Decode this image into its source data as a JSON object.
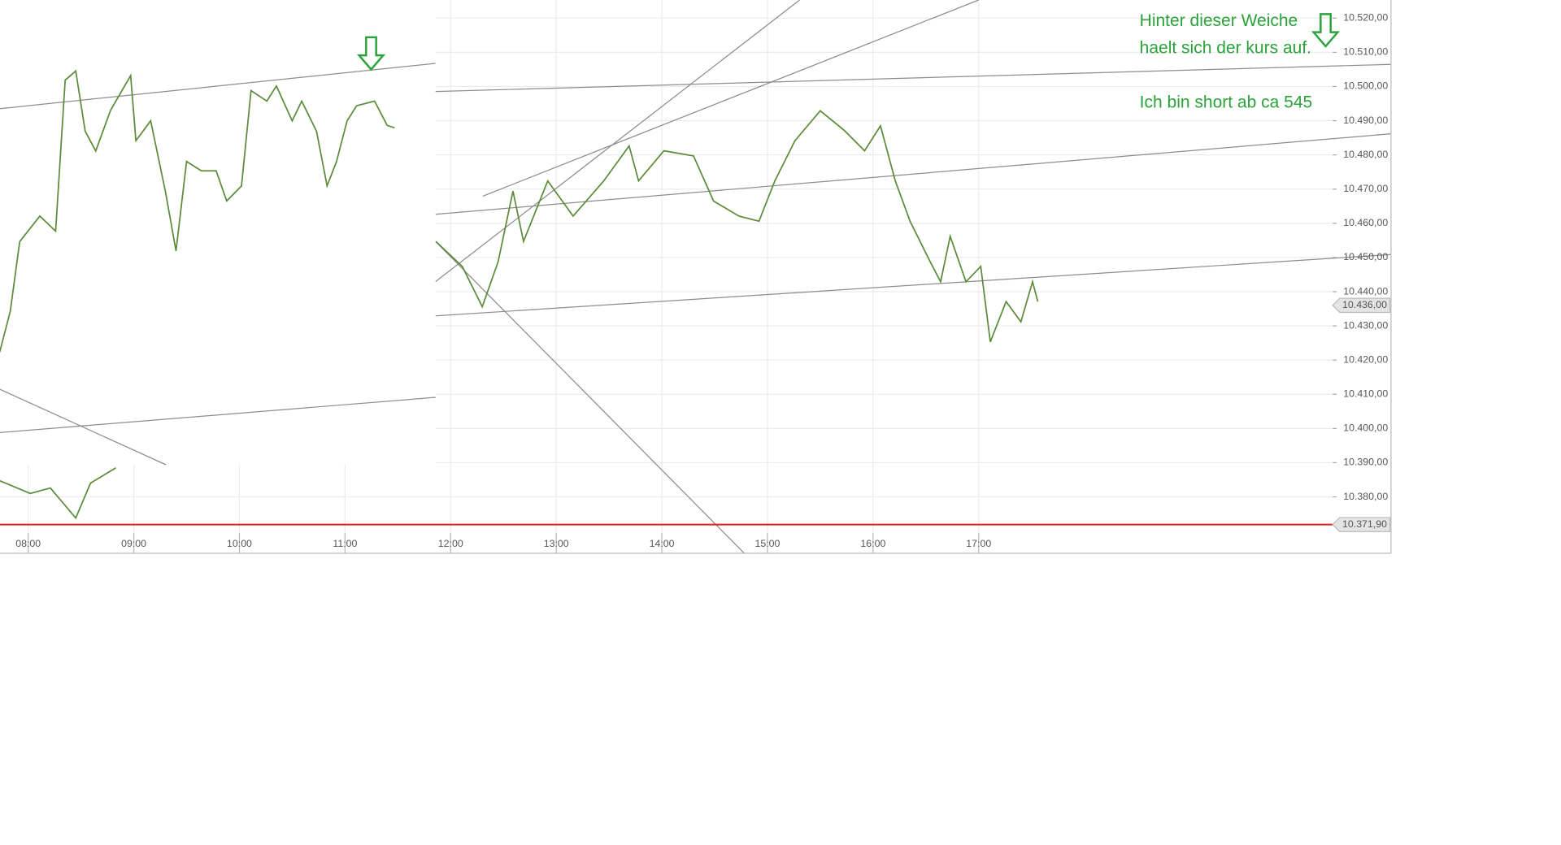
{
  "chart_data": [
    {
      "type": "line",
      "name": "main",
      "x": [
        7.73,
        8.02,
        8.21,
        8.45,
        8.59,
        8.83,
        null,
        11.86,
        12.11,
        12.3,
        12.45,
        12.59,
        12.69,
        12.92,
        13.16,
        13.45,
        13.69,
        13.78,
        14.02,
        14.3,
        14.49,
        14.73,
        14.92,
        15.07,
        15.26,
        15.5,
        15.73,
        15.92,
        16.07,
        16.21,
        16.35,
        16.54,
        16.64,
        16.73,
        16.88,
        17.02,
        17.11,
        17.26,
        17.4,
        17.51,
        17.56
      ],
      "series": [
        {
          "name": "Kurs",
          "color": "#5b8c3a",
          "values": [
            10384.7,
            10381,
            10382.6,
            10373.8,
            10384,
            10388.5,
            null,
            10454.7,
            10447.4,
            10435.6,
            10448.8,
            10469.4,
            10454.7,
            10472.4,
            10462.1,
            10472.4,
            10482.6,
            10472.4,
            10481.2,
            10479.7,
            10466.5,
            10462.1,
            10460.6,
            10472.4,
            10484.1,
            10492.9,
            10487.1,
            10481.2,
            10488.5,
            10472.4,
            10460.6,
            10448.8,
            10442.9,
            10456.2,
            10442.9,
            10447.4,
            10425.3,
            10437.1,
            10431.2,
            10442.9,
            10437.1
          ]
        }
      ],
      "xlim": [
        7.733,
        20.352
      ],
      "xticks": [
        {
          "value": 8,
          "label": "08:00"
        },
        {
          "value": 9,
          "label": "09:00"
        },
        {
          "value": 10,
          "label": "10:00"
        },
        {
          "value": 11,
          "label": "11:00"
        },
        {
          "value": 12,
          "label": "12:00"
        },
        {
          "value": 13,
          "label": "13:00"
        },
        {
          "value": 14,
          "label": "14:00"
        },
        {
          "value": 15,
          "label": "15:00"
        },
        {
          "value": 16,
          "label": "16:00"
        },
        {
          "value": 17,
          "label": "17:00"
        }
      ],
      "ylim": [
        10363.5,
        10525.3
      ],
      "yticks": [
        {
          "value": 10380,
          "label": "10.380,00"
        },
        {
          "value": 10390,
          "label": "10.390,00"
        },
        {
          "value": 10400,
          "label": "10.400,00"
        },
        {
          "value": 10410,
          "label": "10.410,00"
        },
        {
          "value": 10420,
          "label": "10.420,00"
        },
        {
          "value": 10430,
          "label": "10.430,00"
        },
        {
          "value": 10440,
          "label": "10.440,00"
        },
        {
          "value": 10450,
          "label": "10.450,00"
        },
        {
          "value": 10460,
          "label": "10.460,00"
        },
        {
          "value": 10470,
          "label": "10.470,00"
        },
        {
          "value": 10480,
          "label": "10.480,00"
        },
        {
          "value": 10490,
          "label": "10.490,00"
        },
        {
          "value": 10500,
          "label": "10.500,00"
        },
        {
          "value": 10510,
          "label": "10.510,00"
        },
        {
          "value": 10520,
          "label": "10.520,00"
        }
      ],
      "grid": true,
      "price_tags": [
        {
          "value": 10436,
          "label": "10.436,00",
          "color": "#e4e4e4"
        },
        {
          "value": 10371.9,
          "label": "10.371,90",
          "color": "#e4e4e4"
        }
      ],
      "reference_line": {
        "value": 10371.9,
        "color": "#e02020"
      },
      "annotations": [
        "Hinter dieser Weiche",
        "haelt sich der kurs auf.",
        "Ich bin short ab ca 545"
      ]
    },
    {
      "type": "line",
      "name": "inset",
      "x": [
        7.73,
        7.83,
        7.92,
        8.11,
        8.26,
        8.35,
        8.45,
        8.54,
        8.64,
        8.78,
        8.97,
        9.02,
        9.16,
        9.3,
        9.4,
        9.5,
        9.64,
        9.78,
        9.88,
        10.02,
        10.11,
        10.26,
        10.35,
        10.5,
        10.59,
        10.73,
        10.83,
        10.92,
        11.02,
        11.11,
        11.28,
        11.4,
        11.47
      ],
      "series": [
        {
          "name": "Inset",
          "color": "#5b8c3a",
          "values": [
            10369.7,
            10373.2,
            10379.2,
            10381.4,
            10380.1,
            10393.1,
            10393.9,
            10388.7,
            10387,
            10390.5,
            10393.5,
            10387.9,
            10389.6,
            10383.5,
            10378.4,
            10386.1,
            10385.3,
            10385.3,
            10382.7,
            10384,
            10392.2,
            10391.3,
            10392.6,
            10389.6,
            10391.3,
            10388.7,
            10384,
            10386.1,
            10389.6,
            10390.9,
            10391.3,
            10389.2,
            10389
          ]
        }
      ],
      "xlim": [
        7.733,
        11.857
      ],
      "ylim": [
        10360,
        10400
      ]
    }
  ]
}
